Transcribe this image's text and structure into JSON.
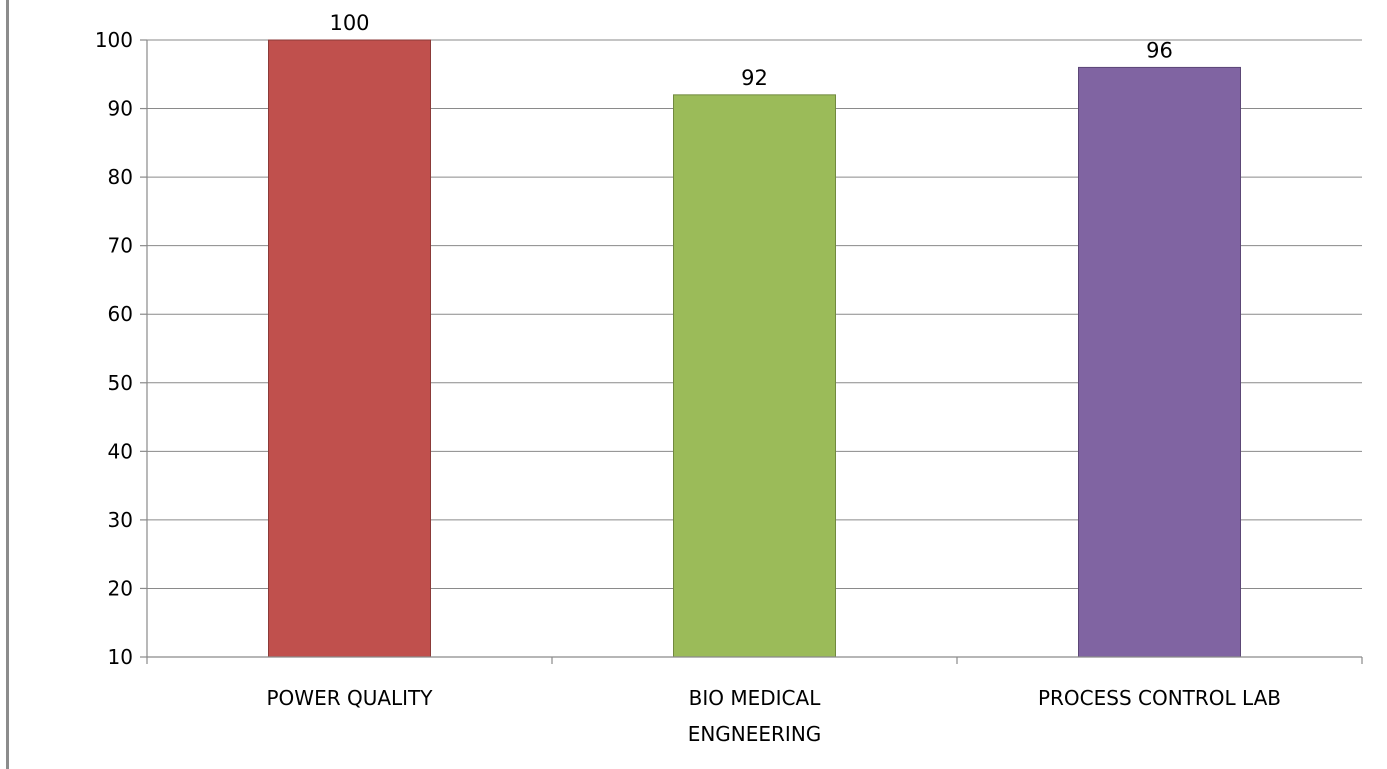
{
  "chart_data": {
    "type": "bar",
    "categories": [
      [
        "POWER QUALITY"
      ],
      [
        "BIO MEDICAL",
        "ENGNEERING"
      ],
      [
        "PROCESS CONTROL LAB"
      ]
    ],
    "values": [
      100,
      92,
      96
    ],
    "data_labels": [
      "100",
      "92",
      "96"
    ],
    "colors": [
      "#C0504D",
      "#9BBB59",
      "#8064A2"
    ],
    "border_colors": [
      "#8B3A38",
      "#71893F",
      "#5C4776"
    ],
    "title": "",
    "xlabel": "",
    "ylabel": "",
    "ylim": [
      10,
      100
    ],
    "yticks": [
      10,
      20,
      30,
      40,
      50,
      60,
      70,
      80,
      90,
      100
    ],
    "ytick_labels": [
      "10",
      "20",
      "30",
      "40",
      "50",
      "60",
      "70",
      "80",
      "90",
      "100"
    ],
    "grid": true,
    "legend": "none"
  }
}
